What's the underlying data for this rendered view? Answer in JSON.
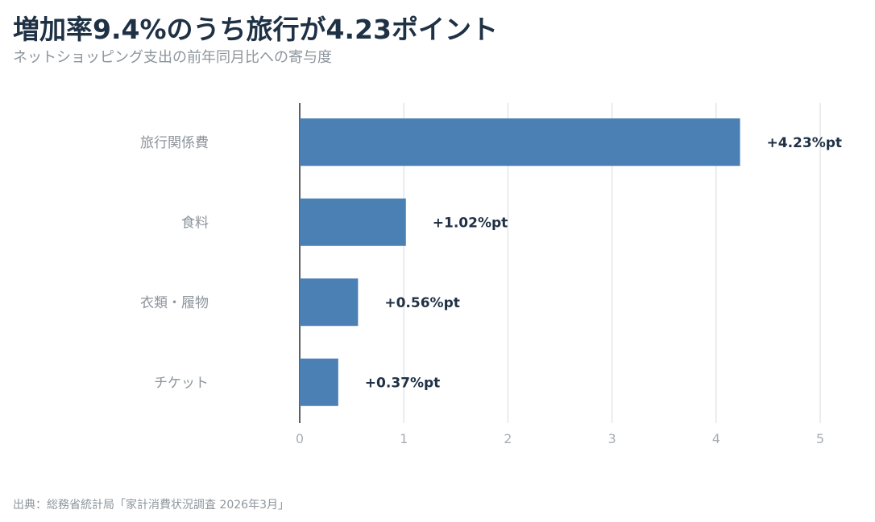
{
  "title": "増加率9.4%のうち旅行が4.23ポイント",
  "subtitle": "ネットショッピング支出の前年同月比への寄与度",
  "source": "出典：総務省統計局「家計消費状況調査 2026年3月」",
  "chart_data": {
    "type": "bar",
    "orientation": "horizontal",
    "categories": [
      "旅行関係費",
      "食料",
      "衣類・履物",
      "チケット"
    ],
    "values": [
      4.23,
      1.02,
      0.56,
      0.37
    ],
    "value_labels": [
      "+4.23%pt",
      "+1.02%pt",
      "+0.56%pt",
      "+0.37%pt"
    ],
    "title": "増加率9.4%のうち旅行が4.23ポイント",
    "subtitle": "ネットショッピング支出の前年同月比への寄与度",
    "xlabel": "",
    "ylabel": "",
    "xlim": [
      0,
      5
    ],
    "xticks": [
      "0",
      "1",
      "2",
      "3",
      "4",
      "5"
    ],
    "grid": true,
    "bar_color": "#4a80b4"
  }
}
